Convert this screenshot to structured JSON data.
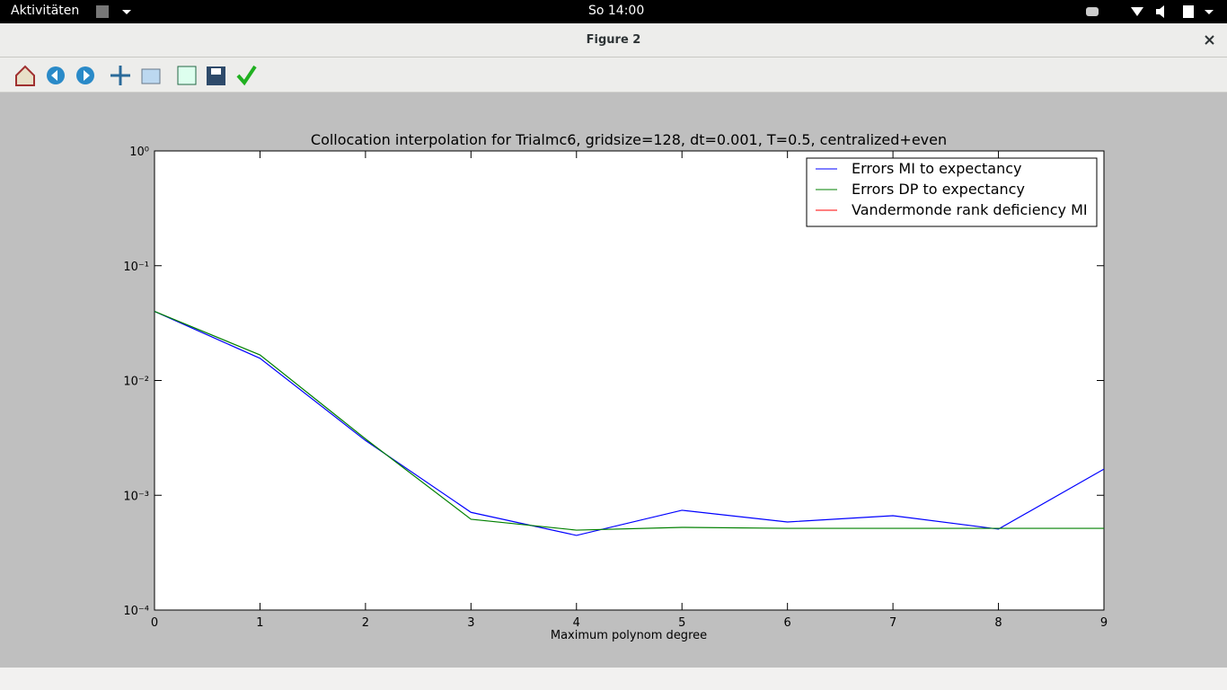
{
  "topbar": {
    "activities": "Aktivitäten",
    "clock": "So 14:00"
  },
  "window": {
    "title": "Figure 2"
  },
  "chart_data": {
    "type": "line",
    "title": "Collocation interpolation for Trialmc6, gridsize=128, dt=0.001, T=0.5, centralized+even",
    "xlabel": "Maximum polynom degree",
    "x": [
      0,
      1,
      2,
      3,
      4,
      5,
      6,
      7,
      8,
      9
    ],
    "xlim": [
      0,
      9
    ],
    "xticks": [
      0,
      1,
      2,
      3,
      4,
      5,
      6,
      7,
      8,
      9
    ],
    "ylim": [
      0.0001,
      1
    ],
    "yscale": "log",
    "yticks": [
      {
        "value": 0.0001,
        "label": "10⁻⁴"
      },
      {
        "value": 0.001,
        "label": "10⁻³"
      },
      {
        "value": 0.01,
        "label": "10⁻²"
      },
      {
        "value": 0.1,
        "label": "10⁻¹"
      },
      {
        "value": 1,
        "label": "10⁰"
      }
    ],
    "legend": "upper right",
    "series": [
      {
        "name": "Errors MI to expectancy",
        "color": "#0000ff",
        "values": [
          0.04,
          0.0156,
          0.003,
          0.00071,
          0.000447,
          0.00074,
          0.000585,
          0.000664,
          0.000507,
          0.00169
        ]
      },
      {
        "name": "Errors DP to expectancy",
        "color": "#008000",
        "values": [
          0.04,
          0.0167,
          0.0031,
          0.000618,
          0.000497,
          0.000525,
          0.000515,
          0.000515,
          0.000515,
          0.000515
        ]
      },
      {
        "name": "Vandermonde rank deficiency MI",
        "color": "#ff0000",
        "values": [
          null,
          null,
          null,
          null,
          null,
          null,
          null,
          null,
          null,
          null
        ]
      }
    ]
  }
}
